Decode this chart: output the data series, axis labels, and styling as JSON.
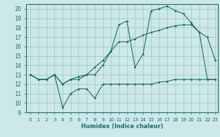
{
  "xlabel": "Humidex (Indice chaleur)",
  "xlim": [
    -0.5,
    23.3
  ],
  "ylim": [
    9,
    20.5
  ],
  "yticks": [
    9,
    10,
    11,
    12,
    13,
    14,
    15,
    16,
    17,
    18,
    19,
    20
  ],
  "xticks": [
    0,
    1,
    2,
    3,
    4,
    5,
    6,
    7,
    8,
    9,
    10,
    11,
    12,
    13,
    14,
    15,
    16,
    17,
    18,
    19,
    20,
    21,
    22,
    23
  ],
  "bg_color": "#cce8e8",
  "grid_color": "#aacccc",
  "line_color": "#1a6b6b",
  "line1_y": [
    13.0,
    12.5,
    12.5,
    13.0,
    9.5,
    11.0,
    11.5,
    11.5,
    10.5,
    12.0,
    12.0,
    12.0,
    12.0,
    12.0,
    12.0,
    12.0,
    12.2,
    12.3,
    12.5,
    12.5,
    12.5,
    12.5,
    12.5,
    12.5
  ],
  "line2_y": [
    13.0,
    12.5,
    12.5,
    13.0,
    12.0,
    12.5,
    12.5,
    13.0,
    13.0,
    14.0,
    15.5,
    16.5,
    16.5,
    16.8,
    17.2,
    17.5,
    17.7,
    18.0,
    18.2,
    18.3,
    18.3,
    17.5,
    12.5,
    12.5
  ],
  "line3_y": [
    13.0,
    12.5,
    12.5,
    13.0,
    12.0,
    12.5,
    12.8,
    13.0,
    13.8,
    14.5,
    15.5,
    18.3,
    18.7,
    13.8,
    15.2,
    19.8,
    20.0,
    20.3,
    19.8,
    19.5,
    18.5,
    17.5,
    17.0,
    14.5
  ]
}
